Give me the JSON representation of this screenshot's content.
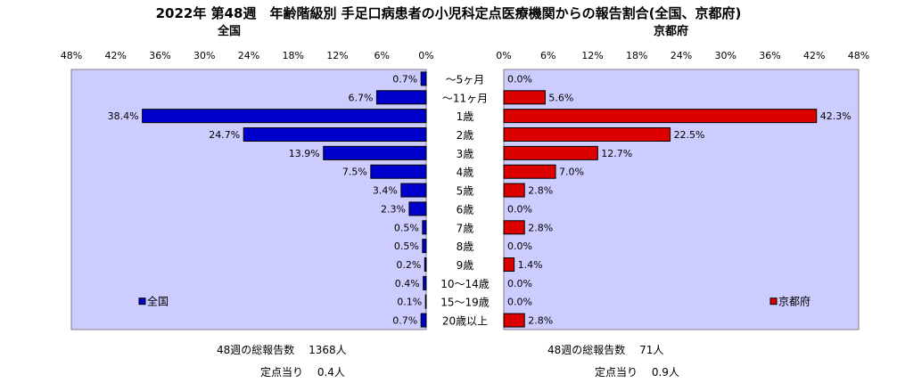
{
  "title": "2022年 第48週　年齢階級別 手足口病患者の小児科定点医療機関からの報告割合(全国、京都府)",
  "chart_data": {
    "type": "bar",
    "orientation": "horizontal",
    "categories": [
      "～5ヶ月",
      "～11ヶ月",
      "1歳",
      "2歳",
      "3歳",
      "4歳",
      "5歳",
      "6歳",
      "7歳",
      "8歳",
      "9歳",
      "10～14歳",
      "15～19歳",
      "20歳以上"
    ],
    "xlim": [
      0,
      48
    ],
    "xticks": [
      "48%",
      "42%",
      "36%",
      "30%",
      "24%",
      "18%",
      "12%",
      "6%",
      "0%"
    ],
    "xticks_right": [
      "0%",
      "6%",
      "12%",
      "18%",
      "24%",
      "30%",
      "36%",
      "42%",
      "48%"
    ],
    "grid": false,
    "panels": [
      {
        "title": "全国",
        "legend": "全国",
        "legend_position": "bottom-left",
        "color": "#0000cc",
        "values": [
          0.7,
          6.7,
          38.4,
          24.7,
          13.9,
          7.5,
          3.4,
          2.3,
          0.5,
          0.5,
          0.2,
          0.4,
          0.1,
          0.7
        ],
        "labels": [
          "0.7%",
          "6.7%",
          "38.4%",
          "24.7%",
          "13.9%",
          "7.5%",
          "3.4%",
          "2.3%",
          "0.5%",
          "0.5%",
          "0.2%",
          "0.4%",
          "0.1%",
          "0.7%"
        ]
      },
      {
        "title": "京都府",
        "legend": "京都府",
        "legend_position": "bottom-right",
        "color": "#dd0000",
        "values": [
          0.0,
          5.6,
          42.3,
          22.5,
          12.7,
          7.0,
          2.8,
          0.0,
          2.8,
          0.0,
          1.4,
          0.0,
          0.0,
          2.8
        ],
        "labels": [
          "0.0%",
          "5.6%",
          "42.3%",
          "22.5%",
          "12.7%",
          "7.0%",
          "2.8%",
          "0.0%",
          "2.8%",
          "0.0%",
          "1.4%",
          "0.0%",
          "0.0%",
          "2.8%"
        ]
      }
    ]
  },
  "footer": {
    "left_total": "48週の総報告数　 1368人",
    "left_per": "定点当り　 0.4人",
    "right_total": "48週の総報告数　 71人",
    "right_per": "定点当り　 0.9人"
  },
  "colors": {
    "plot_bg": "#ccccff",
    "left_bar": "#0000cc",
    "right_bar": "#dd0000"
  }
}
